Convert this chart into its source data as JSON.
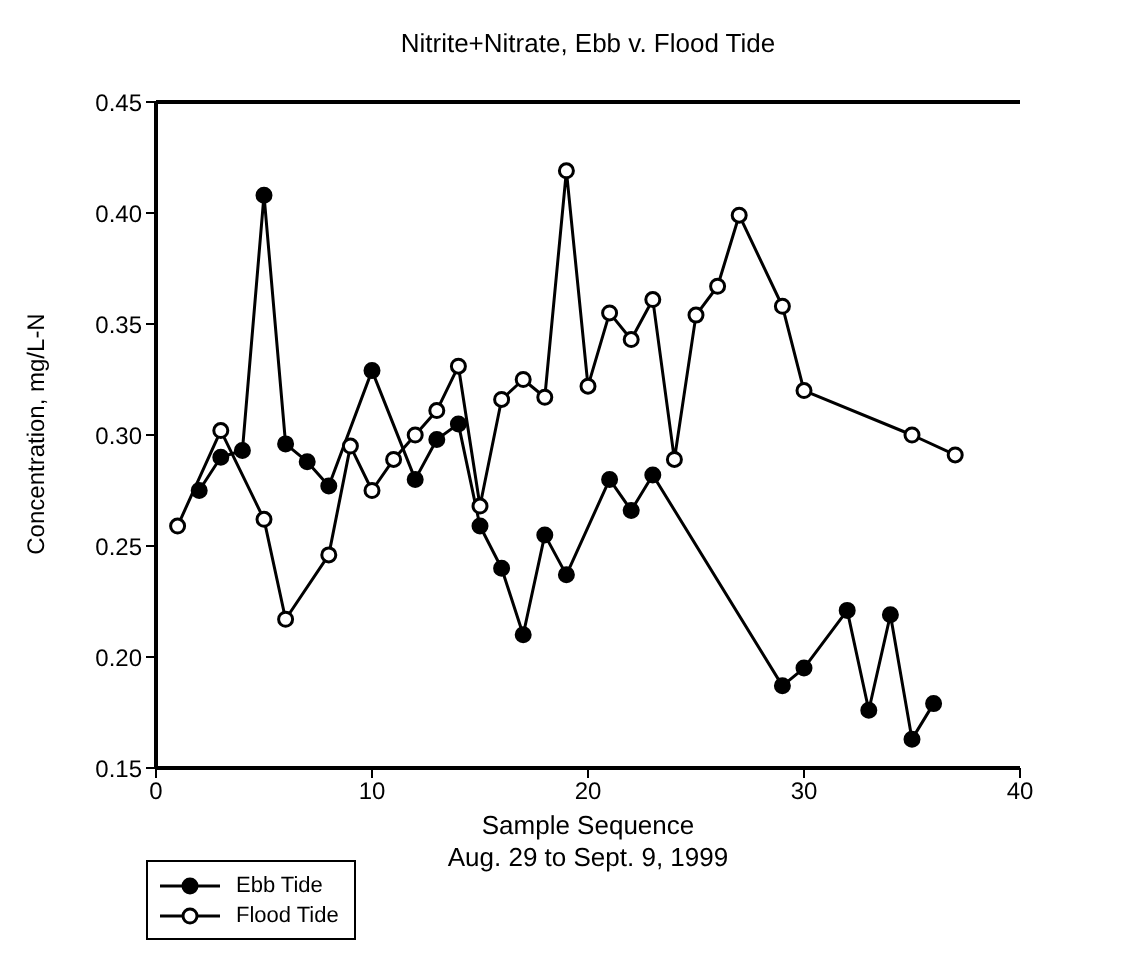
{
  "chart_data": {
    "type": "line",
    "title": "Nitrite+Nitrate, Ebb v. Flood Tide",
    "xlabel": "Sample Sequence\nAug. 29 to Sept. 9, 1999",
    "ylabel": "Concentration,  mg/L-N",
    "xlim": [
      0,
      40
    ],
    "xticks": [
      0,
      10,
      20,
      30,
      40
    ],
    "ylim": [
      0.15,
      0.45
    ],
    "yticks": [
      0.15,
      {
        "value": 0.2,
        "label": "0.20"
      },
      0.25,
      {
        "value": 0.3,
        "label": "0.30"
      },
      0.35,
      {
        "value": 0.4,
        "label": "0.40"
      },
      0.45
    ],
    "grid": false,
    "legend": "bottom left",
    "line_style": "solid",
    "series": [
      {
        "name": "Ebb Tide",
        "color": "#000000",
        "marker": "circle",
        "x": [
          2,
          3,
          4,
          5,
          6,
          7,
          8,
          10,
          12,
          13,
          14,
          15,
          16,
          17,
          18,
          19,
          21,
          22,
          23,
          29,
          30,
          32,
          33,
          34,
          35,
          36
        ],
        "values": [
          0.275,
          0.29,
          0.293,
          0.408,
          0.296,
          0.288,
          0.277,
          0.329,
          0.28,
          0.298,
          0.305,
          0.259,
          0.24,
          0.21,
          0.255,
          0.237,
          0.28,
          0.266,
          0.282,
          0.187,
          0.195,
          0.221,
          0.176,
          0.219,
          0.163,
          0.179
        ]
      },
      {
        "name": "Flood Tide",
        "color": "#ffffff",
        "marker": "circle",
        "x": [
          1,
          3,
          5,
          6,
          8,
          9,
          10,
          11,
          12,
          13,
          14,
          15,
          16,
          17,
          18,
          19,
          20,
          21,
          22,
          23,
          24,
          25,
          26,
          27,
          29,
          30,
          35,
          37
        ],
        "values": [
          0.259,
          0.302,
          0.262,
          0.217,
          0.246,
          0.295,
          0.275,
          0.289,
          0.3,
          0.311,
          0.331,
          0.268,
          0.316,
          0.325,
          0.317,
          0.419,
          0.322,
          0.355,
          0.343,
          0.361,
          0.289,
          0.354,
          0.367,
          0.399,
          0.358,
          0.32,
          0.3,
          0.291
        ]
      }
    ]
  }
}
